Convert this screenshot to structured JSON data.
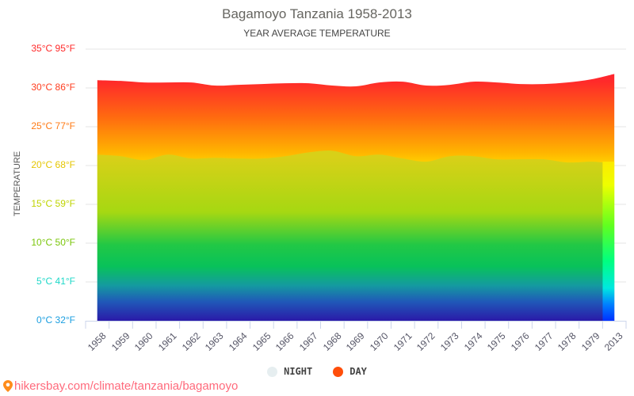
{
  "header": {
    "title": "Bagamoyo Tanzania 1958-2013",
    "subtitle": "YEAR AVERAGE TEMPERATURE"
  },
  "y_axis": {
    "label": "TEMPERATURE",
    "ticks": [
      {
        "label": "35°C 95°F",
        "value": 35,
        "color": "#ff2a2a"
      },
      {
        "label": "30°C 86°F",
        "value": 30,
        "color": "#ff3d1f"
      },
      {
        "label": "25°C 77°F",
        "value": 25,
        "color": "#ff7a14"
      },
      {
        "label": "20°C 68°F",
        "value": 20,
        "color": "#e5c600"
      },
      {
        "label": "15°C 59°F",
        "value": 15,
        "color": "#bfd400"
      },
      {
        "label": "10°C 50°F",
        "value": 10,
        "color": "#7ac60a"
      },
      {
        "label": "5°C 41°F",
        "value": 5,
        "color": "#1ed8c8"
      },
      {
        "label": "0°C 32°F",
        "value": 0,
        "color": "#1a9ee0"
      }
    ]
  },
  "legend": {
    "items": [
      {
        "label": "NIGHT",
        "color": "#e6eef0"
      },
      {
        "label": "DAY",
        "color": "#ff4e0a"
      }
    ]
  },
  "footer": {
    "url_text": "hikersbay.com/climate/tanzania/bagamoyo",
    "pin_color": "#ff8c1a"
  },
  "chart_data": {
    "type": "area",
    "title": "Bagamoyo Tanzania 1958-2013",
    "subtitle": "YEAR AVERAGE TEMPERATURE",
    "xlabel": "",
    "ylabel": "TEMPERATURE",
    "ylim": [
      0,
      35
    ],
    "grid": true,
    "legend_position": "bottom",
    "categories": [
      "1958",
      "1959",
      "1960",
      "1961",
      "1962",
      "1963",
      "1964",
      "1965",
      "1966",
      "1967",
      "1968",
      "1969",
      "1970",
      "1971",
      "1972",
      "1973",
      "1974",
      "1975",
      "1976",
      "1977",
      "1978",
      "1979",
      "2013"
    ],
    "series": [
      {
        "name": "NIGHT",
        "unit": "°C",
        "values": [
          21.4,
          21.2,
          20.7,
          21.4,
          20.9,
          21.0,
          20.9,
          20.9,
          21.2,
          21.7,
          21.9,
          21.2,
          21.4,
          20.9,
          20.5,
          21.2,
          21.2,
          20.8,
          20.8,
          20.8,
          20.4,
          20.5,
          null
        ]
      },
      {
        "name": "DAY",
        "unit": "°C",
        "values": [
          31.0,
          30.9,
          30.7,
          30.7,
          30.7,
          30.3,
          30.4,
          30.5,
          30.6,
          30.6,
          30.3,
          30.2,
          30.7,
          30.8,
          30.3,
          30.4,
          30.8,
          30.7,
          30.5,
          30.5,
          30.7,
          31.1,
          31.8
        ]
      }
    ]
  }
}
